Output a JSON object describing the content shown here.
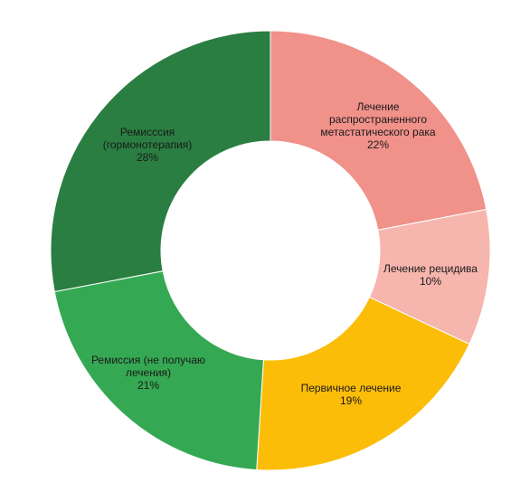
{
  "chart_data": {
    "type": "pie",
    "donut": true,
    "title": "",
    "slices": [
      {
        "label_lines": [
          "Лечение",
          "распространенного",
          "метастатического  рака"
        ],
        "percent_label": "22%",
        "value": 22,
        "color": "#f0918a"
      },
      {
        "label_lines": [
          "Лечение  рецидива"
        ],
        "percent_label": "10%",
        "value": 10,
        "color": "#f6b5ad"
      },
      {
        "label_lines": [
          "Первичное  лечение"
        ],
        "percent_label": "19%",
        "value": 19,
        "color": "#fbbd08"
      },
      {
        "label_lines": [
          "Ремиссия (не получаю",
          "лечения)"
        ],
        "percent_label": "21%",
        "value": 21,
        "color": "#35a853"
      },
      {
        "label_lines": [
          "Ремисссия",
          "(гормонотерапия)"
        ],
        "percent_label": "28%",
        "value": 28,
        "color": "#2a7e41"
      }
    ]
  }
}
